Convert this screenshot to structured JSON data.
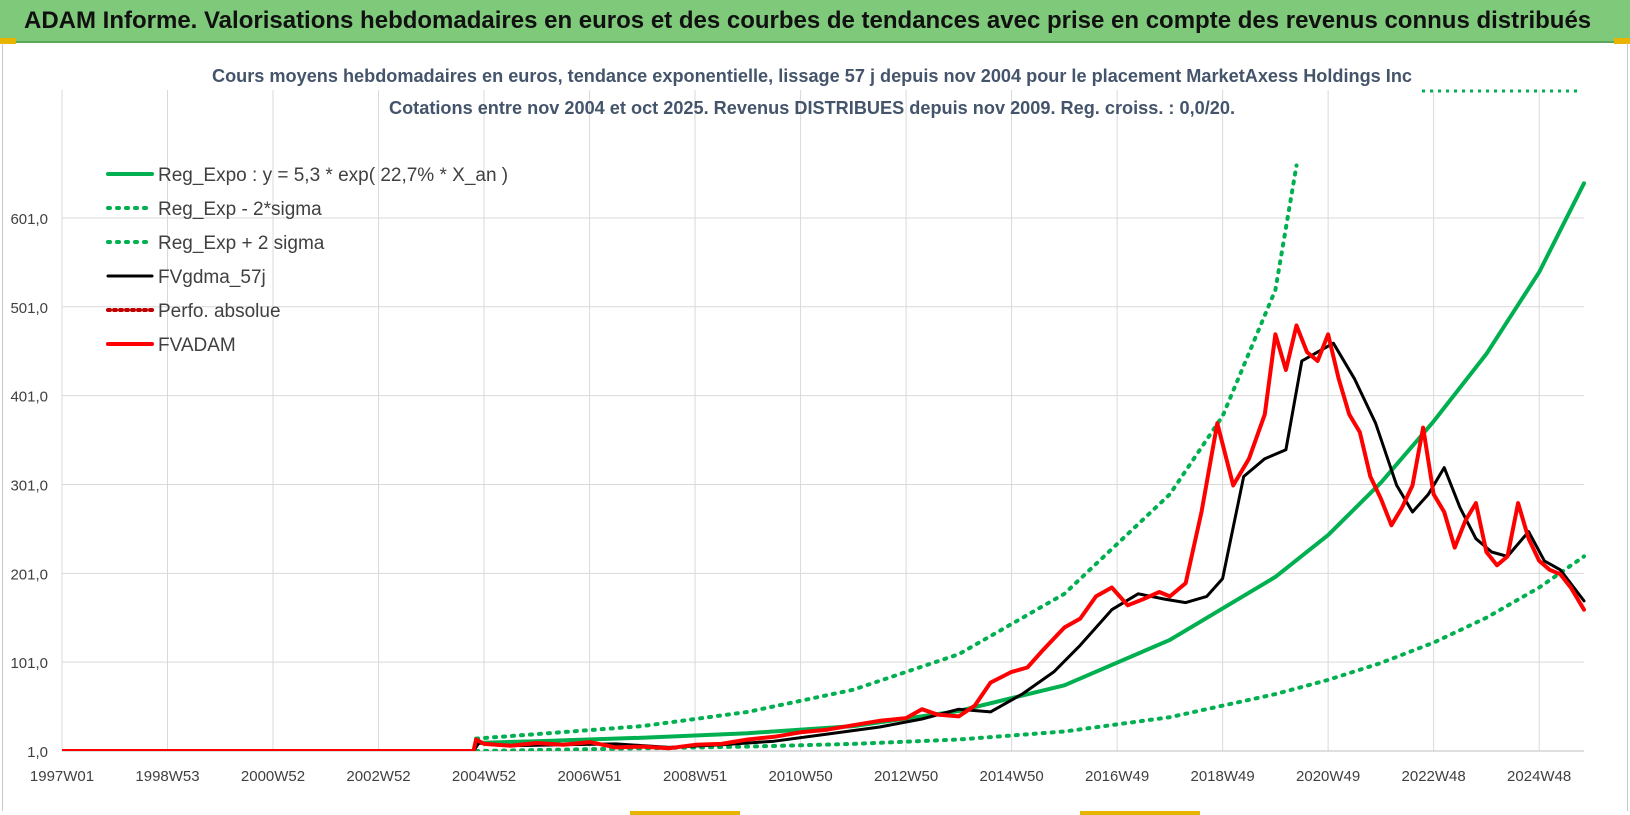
{
  "header": {
    "title": "ADAM Informe. Valorisations hebdomadaires en euros et des courbes de tendances avec prise en compte des revenus connus distribués"
  },
  "colors": {
    "header_bg": "#7fc97a",
    "regression": "#00b050",
    "price": "#ff0000",
    "smoothed": "#000000",
    "perfo": "#c00000",
    "grid": "#d9d9d9",
    "axis_text": "#404040",
    "chart_title": "#44546a"
  },
  "chart_data": {
    "type": "line",
    "title_line1": "Cours moyens hebdomadaires en euros, tendance exponentielle, lissage 57 j depuis nov 2004 pour le placement MarketAxess Holdings Inc",
    "title_line2": "Cotations entre nov 2004 et oct 2025. Revenus DISTRIBUES depuis nov 2009. Reg. croiss. : 0,0/20.",
    "ylim": [
      1,
      700
    ],
    "y_ticks": [
      "1,0",
      "101,0",
      "201,0",
      "301,0",
      "401,0",
      "501,0",
      "601,0"
    ],
    "y_tick_values": [
      1,
      101,
      201,
      301,
      401,
      501,
      601
    ],
    "x_range_years": [
      1997.0,
      2025.85
    ],
    "x_ticks": [
      "1997W01",
      "1998W53",
      "2000W52",
      "2002W52",
      "2004W52",
      "2006W51",
      "2008W51",
      "2010W50",
      "2012W50",
      "2014W50",
      "2016W49",
      "2018W49",
      "2020W49",
      "2022W48",
      "2024W48"
    ],
    "x_tick_years": [
      1997.0,
      1999.0,
      2001.0,
      2003.0,
      2005.0,
      2007.0,
      2009.0,
      2011.0,
      2013.0,
      2015.0,
      2017.0,
      2019.0,
      2021.0,
      2023.0,
      2025.0
    ],
    "grid": true,
    "legend_position": "top-left",
    "legend": [
      {
        "label": "Reg_Expo : y = 5,3 * exp( 22,7% *  X_an )",
        "style": "solid-thick",
        "color": "#00b050"
      },
      {
        "label": "Reg_Exp - 2*sigma",
        "style": "dotted",
        "color": "#00b050"
      },
      {
        "label": "Reg_Exp + 2 sigma",
        "style": "dotted",
        "color": "#00b050"
      },
      {
        "label": "FVgdma_57j",
        "style": "solid",
        "color": "#000000"
      },
      {
        "label": "Perfo. absolue",
        "style": "dotted",
        "color": "#c00000"
      },
      {
        "label": "FVADAM",
        "style": "solid-thick",
        "color": "#ff0000"
      }
    ],
    "series": [
      {
        "name": "Reg_Expo : y = 5,3 * exp( 22,7% *  X_an )",
        "x": [
          2004.85,
          2006,
          2008,
          2010,
          2012,
          2014,
          2016,
          2018,
          2020,
          2021,
          2022,
          2023,
          2024,
          2025,
          2025.85
        ],
        "values": [
          10,
          12,
          16,
          21,
          29,
          46,
          75,
          126,
          197,
          244,
          303,
          372,
          448,
          540,
          640
        ]
      },
      {
        "name": "Reg_Exp - 2*sigma",
        "x": [
          2004.85,
          2006,
          2008,
          2010,
          2012,
          2014,
          2016,
          2018,
          2020,
          2021,
          2022,
          2023,
          2024,
          2025,
          2025.85
        ],
        "values": [
          1,
          2,
          4,
          6,
          9,
          14,
          23,
          39,
          65,
          81,
          100,
          123,
          151,
          185,
          220
        ]
      },
      {
        "name": "Reg_Exp + 2 sigma",
        "x": [
          2004.85,
          2006,
          2008,
          2010,
          2012,
          2014,
          2016,
          2018,
          2019,
          2020,
          2020.4
        ],
        "values": [
          15,
          20,
          29,
          45,
          70,
          110,
          178,
          290,
          378,
          520,
          660
        ]
      },
      {
        "name": "FVgdma_57j",
        "x": [
          1997.0,
          2004.8,
          2004.9,
          2005.5,
          2006.5,
          2007.5,
          2008.5,
          2009.5,
          2010.5,
          2011.5,
          2012.5,
          2013.3,
          2014.0,
          2014.6,
          2015.2,
          2015.8,
          2016.3,
          2016.9,
          2017.4,
          2017.9,
          2018.3,
          2018.7,
          2019.0,
          2019.4,
          2019.8,
          2020.2,
          2020.5,
          2020.8,
          2021.1,
          2021.5,
          2021.9,
          2022.3,
          2022.6,
          2022.9,
          2023.2,
          2023.5,
          2023.8,
          2024.1,
          2024.4,
          2024.8,
          2025.1,
          2025.4,
          2025.85
        ],
        "values": [
          1,
          1,
          10,
          7,
          8,
          9,
          5,
          8,
          12,
          20,
          28,
          37,
          48,
          45,
          65,
          90,
          120,
          160,
          178,
          172,
          168,
          175,
          195,
          310,
          330,
          340,
          440,
          450,
          460,
          420,
          370,
          300,
          270,
          290,
          320,
          275,
          240,
          225,
          220,
          248,
          215,
          205,
          170
        ]
      },
      {
        "name": "FVADAM",
        "x": [
          1997.0,
          2004.8,
          2004.85,
          2005.0,
          2005.5,
          2006.0,
          2006.5,
          2007.0,
          2007.5,
          2008.0,
          2008.5,
          2009.0,
          2009.5,
          2010.0,
          2010.5,
          2011.0,
          2011.5,
          2012.0,
          2012.5,
          2013.0,
          2013.3,
          2013.6,
          2014.0,
          2014.3,
          2014.6,
          2015.0,
          2015.3,
          2015.6,
          2016.0,
          2016.3,
          2016.6,
          2016.9,
          2017.2,
          2017.5,
          2017.8,
          2018.0,
          2018.3,
          2018.6,
          2018.9,
          2019.2,
          2019.5,
          2019.8,
          2020.0,
          2020.2,
          2020.4,
          2020.6,
          2020.8,
          2021.0,
          2021.2,
          2021.4,
          2021.6,
          2021.8,
          2022.0,
          2022.2,
          2022.4,
          2022.6,
          2022.8,
          2023.0,
          2023.2,
          2023.4,
          2023.6,
          2023.8,
          2024.0,
          2024.2,
          2024.4,
          2024.6,
          2024.8,
          2025.0,
          2025.2,
          2025.4,
          2025.6,
          2025.85
        ],
        "values": [
          1,
          1,
          14,
          9,
          7,
          10,
          8,
          11,
          5,
          6,
          4,
          8,
          9,
          14,
          17,
          22,
          25,
          30,
          35,
          38,
          48,
          42,
          40,
          52,
          78,
          90,
          95,
          115,
          140,
          150,
          175,
          185,
          165,
          172,
          180,
          175,
          190,
          270,
          370,
          300,
          330,
          380,
          470,
          430,
          480,
          450,
          440,
          470,
          420,
          380,
          360,
          310,
          285,
          255,
          275,
          300,
          365,
          290,
          270,
          230,
          260,
          280,
          225,
          210,
          220,
          280,
          240,
          215,
          205,
          200,
          185,
          160
        ]
      }
    ]
  }
}
